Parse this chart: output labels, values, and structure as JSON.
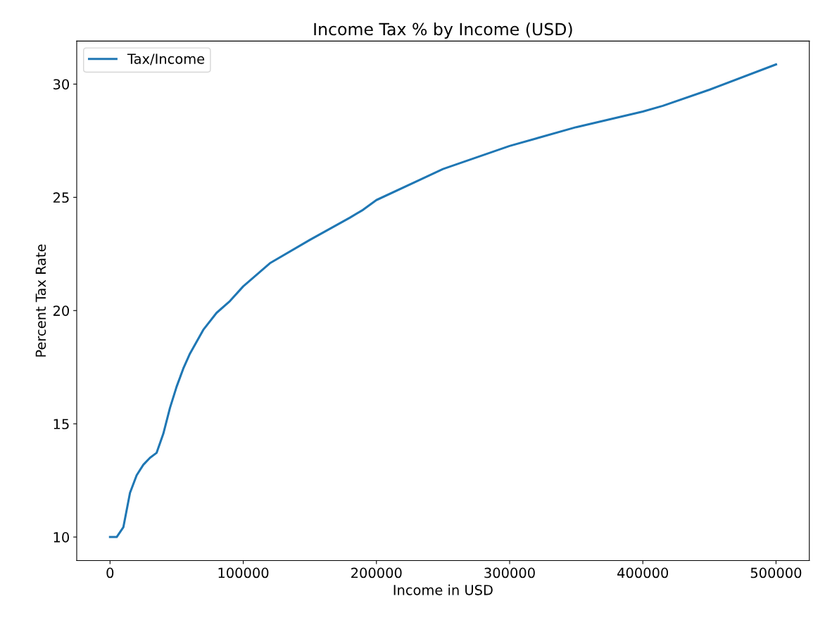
{
  "chart_data": {
    "type": "line",
    "title": "Income Tax % by Income (USD)",
    "xlabel": "Income in USD",
    "ylabel": "Percent Tax Rate",
    "x": [
      0,
      5000,
      10000,
      15000,
      20000,
      25000,
      30000,
      35000,
      40000,
      45000,
      50000,
      55000,
      60000,
      70000,
      80000,
      90000,
      100000,
      120000,
      150000,
      180000,
      190000,
      200000,
      250000,
      300000,
      350000,
      400000,
      415000,
      450000,
      500000
    ],
    "series": [
      {
        "name": "Tax/Income",
        "color": "#1f77b4",
        "values": [
          10,
          10,
          10.43,
          11.95,
          12.73,
          13.19,
          13.5,
          13.72,
          14.56,
          15.7,
          16.64,
          17.44,
          18.1,
          19.15,
          19.9,
          20.42,
          21.07,
          22.09,
          23.12,
          24.1,
          24.45,
          24.88,
          26.25,
          27.27,
          28.1,
          28.79,
          29.04,
          29.75,
          30.87
        ]
      }
    ],
    "xlim": [
      -25000,
      525000
    ],
    "ylim": [
      8.96,
      31.9
    ],
    "xticks": [
      0,
      100000,
      200000,
      300000,
      400000,
      500000
    ],
    "yticks": [
      10,
      15,
      20,
      25,
      30
    ],
    "grid": false,
    "legend": "top left",
    "line_style": "solid",
    "marker": "none"
  }
}
